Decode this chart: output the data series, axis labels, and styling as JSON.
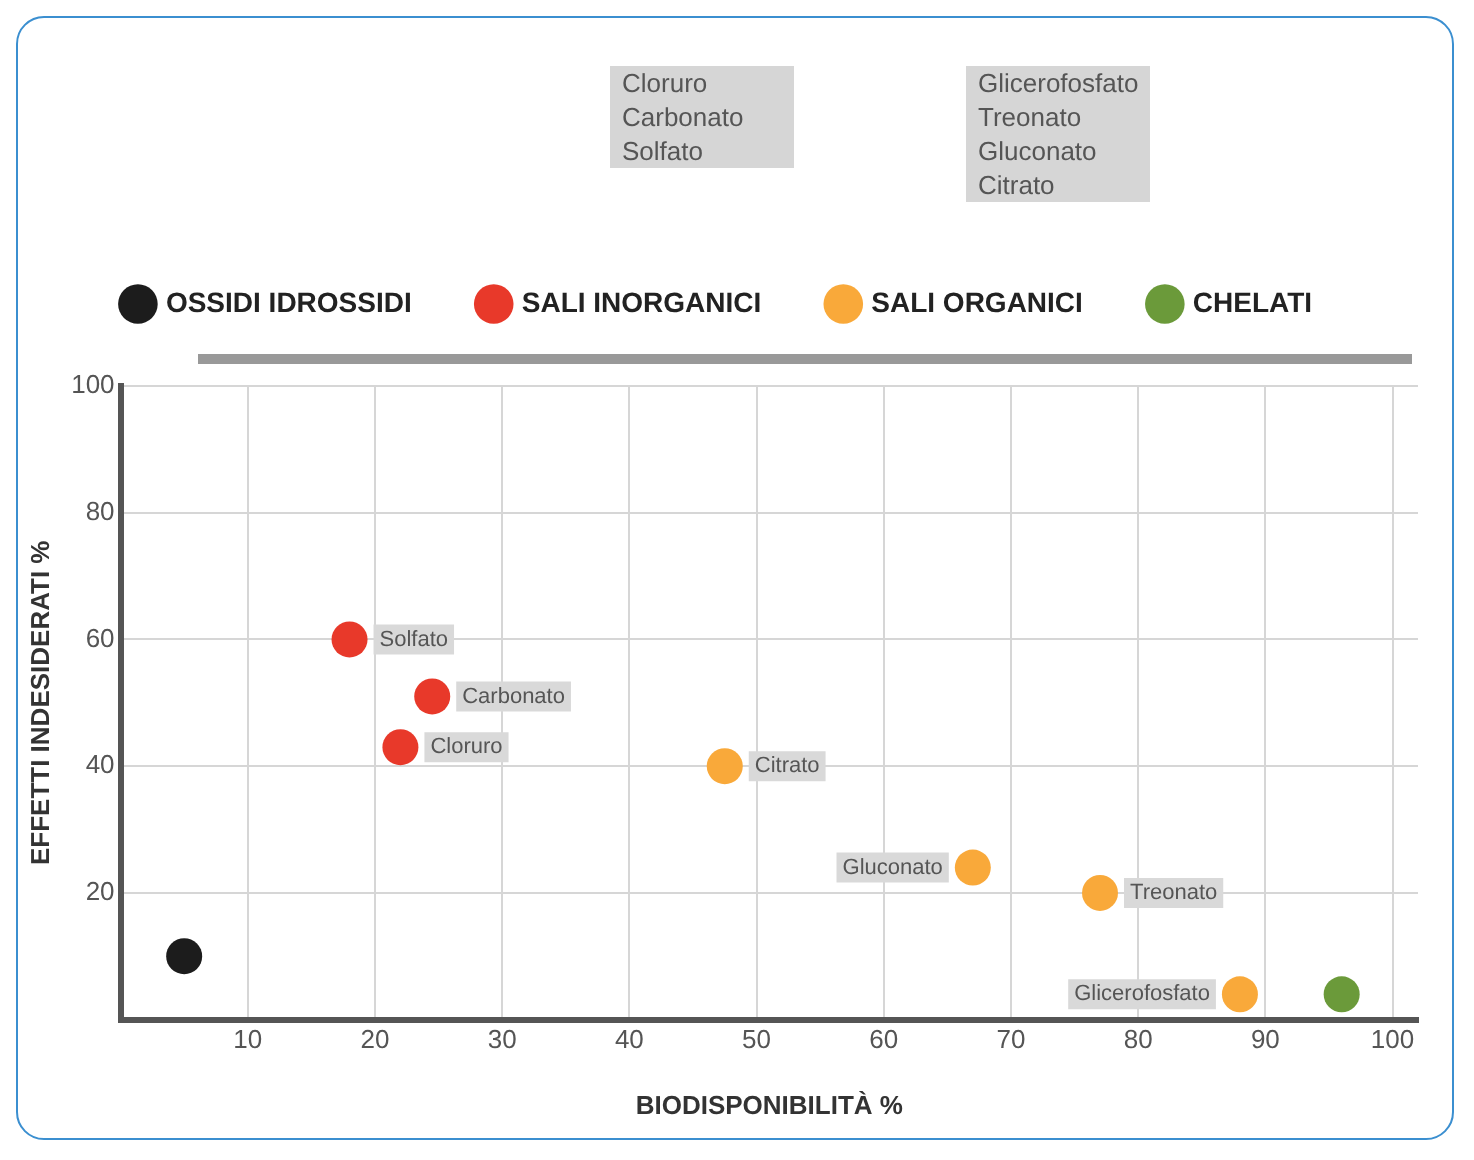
{
  "chart_data": {
    "type": "scatter",
    "xlabel": "BIODISPONIBILITÀ %",
    "ylabel": "EFFETTI INDESIDERATI %",
    "xlim": [
      0,
      102
    ],
    "xticks": [
      10,
      20,
      30,
      40,
      50,
      60,
      70,
      80,
      90,
      100
    ],
    "ylim": [
      0,
      100
    ],
    "yticks": [
      20,
      40,
      60,
      80,
      100
    ],
    "grid": true,
    "legend": "top",
    "marker": "circle",
    "series": [
      {
        "name": "OSSIDI IDROSSIDI",
        "color": "#1c1c1c",
        "x": [
          5
        ],
        "values": [
          10
        ]
      },
      {
        "name": "SALI INORGANICI",
        "color": "#e8392a",
        "x": [
          18,
          24.5,
          22
        ],
        "values": [
          60,
          51,
          43
        ]
      },
      {
        "name": "SALI ORGANICI",
        "color": "#f9a93a",
        "x": [
          47.5,
          67,
          77,
          88
        ],
        "values": [
          40,
          24,
          20,
          4
        ]
      },
      {
        "name": "CHELATI",
        "color": "#6b9a3a",
        "x": [
          96
        ],
        "values": [
          4
        ]
      }
    ],
    "annotations": [
      "Cloruro\nCarbonato\nSolfato",
      "Glicerofosfato\nTreonato\nGluconato\nCitrato",
      {
        "text": "Solfato",
        "x": 18,
        "y": 60
      },
      {
        "text": "Carbonato",
        "x": 24.5,
        "y": 51
      },
      {
        "text": "Cloruro",
        "x": 22,
        "y": 43
      },
      {
        "text": "Citrato",
        "x": 47.5,
        "y": 40
      },
      {
        "text": "Gluconato",
        "x": 67,
        "y": 24
      },
      {
        "text": "Treonato",
        "x": 77,
        "y": 20
      },
      {
        "text": "Glicerofosfato",
        "x": 88,
        "y": 4
      }
    ]
  }
}
